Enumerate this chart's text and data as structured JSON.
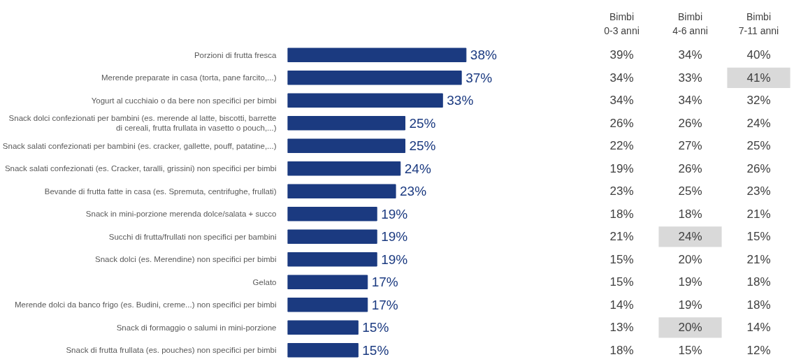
{
  "chart_data": [
    {
      "type": "bar",
      "orientation": "horizontal",
      "data_labels": true,
      "tick_labels": "y",
      "categories": [
        "Porzioni di frutta fresca",
        "Merende preparate in casa (torta, pane farcito,...)",
        "Yogurt al cucchiaio o da bere non specifici per bimbi",
        "Snack dolci confezionati per bambini (es. merende al latte, biscotti, barrette\ndi cereali, frutta frullata in vasetto o pouch,...)",
        "Snack salati confezionati per bambini (es. cracker, gallette, pouff, patatine,...)",
        "Snack salati confezionati (es. Cracker, taralli, grissini) non specifici per bimbi",
        "Bevande di frutta fatte in casa (es. Spremuta, centrifughe, frullati)",
        "Snack in mini-porzione merenda dolce/salata + succo",
        "Succhi di frutta/frullati non specifici per bambini",
        "Snack dolci (es. Merendine) non specifici per bimbi",
        "Gelato",
        "Merende dolci da banco frigo (es. Budini, creme...) non specifici per bimbi",
        "Snack di formaggio o salumi in mini-porzione",
        "Snack di frutta frullata (es. pouches) non specifici per bimbi"
      ],
      "values": [
        38,
        37,
        33,
        25,
        25,
        24,
        23,
        19,
        19,
        19,
        17,
        17,
        15,
        15
      ],
      "value_labels": [
        "38%",
        "37%",
        "33%",
        "25%",
        "25%",
        "24%",
        "23%",
        "19%",
        "19%",
        "19%",
        "17%",
        "17%",
        "15%",
        "15%"
      ],
      "color": "#1b3a80"
    },
    {
      "type": "heatmap",
      "data_labels": true,
      "tick_labels": "x",
      "categories": [
        "Bimbi\n0-3 anni",
        "Bimbi\n4-6 anni",
        "Bimbi\n7-11 anni"
      ],
      "y_categories": [
        null,
        null,
        null,
        null,
        null,
        null,
        null,
        null,
        null,
        null,
        null,
        null,
        null,
        null
      ],
      "cells": [
        [
          39,
          34,
          40
        ],
        [
          34,
          33,
          41
        ],
        [
          34,
          34,
          32
        ],
        [
          26,
          26,
          24
        ],
        [
          22,
          27,
          25
        ],
        [
          19,
          26,
          26
        ],
        [
          23,
          25,
          23
        ],
        [
          18,
          18,
          21
        ],
        [
          21,
          24,
          15
        ],
        [
          15,
          20,
          21
        ],
        [
          15,
          19,
          18
        ],
        [
          14,
          19,
          18
        ],
        [
          13,
          20,
          14
        ],
        [
          18,
          15,
          12
        ]
      ],
      "cell_labels": [
        [
          "39%",
          "34%",
          "40%"
        ],
        [
          "34%",
          "33%",
          "41%"
        ],
        [
          "34%",
          "34%",
          "32%"
        ],
        [
          "26%",
          "26%",
          "24%"
        ],
        [
          "22%",
          "27%",
          "25%"
        ],
        [
          "19%",
          "26%",
          "26%"
        ],
        [
          "23%",
          "25%",
          "23%"
        ],
        [
          "18%",
          "18%",
          "21%"
        ],
        [
          "21%",
          "24%",
          "15%"
        ],
        [
          "15%",
          "20%",
          "21%"
        ],
        [
          "15%",
          "19%",
          "18%"
        ],
        [
          "14%",
          "19%",
          "18%"
        ],
        [
          "13%",
          "20%",
          "14%"
        ],
        [
          "18%",
          "15%",
          "12%"
        ]
      ],
      "colors": [
        [
          "#ffffff",
          "#ffffff",
          "#ffffff"
        ],
        [
          "#ffffff",
          "#ffffff",
          "#d9d9d9"
        ],
        [
          "#ffffff",
          "#ffffff",
          "#ffffff"
        ],
        [
          "#ffffff",
          "#ffffff",
          "#ffffff"
        ],
        [
          "#ffffff",
          "#ffffff",
          "#ffffff"
        ],
        [
          "#ffffff",
          "#ffffff",
          "#ffffff"
        ],
        [
          "#ffffff",
          "#ffffff",
          "#ffffff"
        ],
        [
          "#ffffff",
          "#ffffff",
          "#ffffff"
        ],
        [
          "#ffffff",
          "#d9d9d9",
          "#ffffff"
        ],
        [
          "#ffffff",
          "#ffffff",
          "#ffffff"
        ],
        [
          "#ffffff",
          "#ffffff",
          "#ffffff"
        ],
        [
          "#ffffff",
          "#ffffff",
          "#ffffff"
        ],
        [
          "#ffffff",
          "#d9d9d9",
          "#ffffff"
        ],
        [
          "#ffffff",
          "#ffffff",
          "#ffffff"
        ]
      ]
    }
  ]
}
